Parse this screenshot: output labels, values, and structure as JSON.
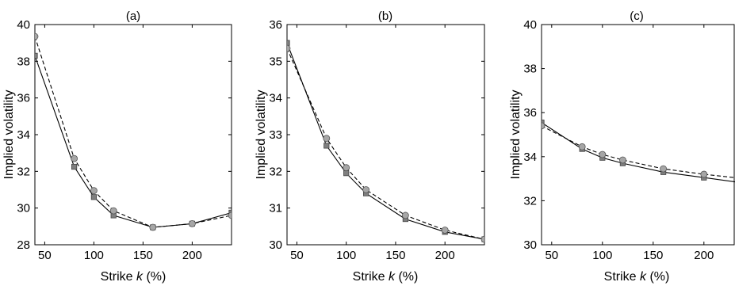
{
  "chart_data": [
    {
      "type": "line",
      "title": "(a)",
      "xlabel": {
        "prefix": "Strike ",
        "italic": "k",
        "suffix": " (%)"
      },
      "ylabel": "Implied volatility",
      "xlim": [
        40,
        240
      ],
      "ylim": [
        28,
        40
      ],
      "xticks": [
        50,
        100,
        150,
        200
      ],
      "yticks": [
        28,
        30,
        32,
        34,
        36,
        38,
        40
      ],
      "grid": false,
      "series": [
        {
          "marker": "square",
          "line": "solid",
          "x": [
            40,
            80,
            100,
            120,
            160,
            200,
            240
          ],
          "y": [
            38.3,
            32.25,
            30.6,
            29.6,
            28.95,
            29.15,
            29.75
          ]
        },
        {
          "marker": "circle",
          "line": "dashed",
          "x": [
            40,
            80,
            100,
            120,
            160,
            200,
            240
          ],
          "y": [
            39.35,
            32.7,
            30.95,
            29.85,
            28.95,
            29.15,
            29.6
          ]
        }
      ]
    },
    {
      "type": "line",
      "title": "(b)",
      "xlabel": {
        "prefix": "Strike ",
        "italic": "k",
        "suffix": " (%)"
      },
      "ylabel": "Implied volatility",
      "xlim": [
        40,
        240
      ],
      "ylim": [
        30,
        36
      ],
      "xticks": [
        50,
        100,
        150,
        200
      ],
      "yticks": [
        30,
        31,
        32,
        33,
        34,
        35,
        36
      ],
      "grid": false,
      "series": [
        {
          "marker": "square",
          "line": "solid",
          "x": [
            40,
            80,
            100,
            120,
            160,
            200,
            240
          ],
          "y": [
            35.5,
            32.7,
            31.95,
            31.4,
            30.7,
            30.35,
            30.15
          ]
        },
        {
          "marker": "circle",
          "line": "dashed",
          "x": [
            40,
            80,
            100,
            120,
            160,
            200,
            240
          ],
          "y": [
            35.35,
            32.9,
            32.1,
            31.5,
            30.8,
            30.4,
            30.15
          ]
        }
      ]
    },
    {
      "type": "line",
      "title": "(c)",
      "xlabel": {
        "prefix": "Strike ",
        "italic": "k",
        "suffix": " (%)"
      },
      "ylabel": "Implied volatility",
      "xlim": [
        40,
        240
      ],
      "ylim": [
        30,
        40
      ],
      "xticks": [
        50,
        100,
        150,
        200
      ],
      "yticks": [
        30,
        32,
        34,
        36,
        38,
        40
      ],
      "grid": false,
      "series": [
        {
          "marker": "square",
          "line": "solid",
          "x": [
            40,
            80,
            100,
            120,
            160,
            200,
            240
          ],
          "y": [
            35.55,
            34.35,
            33.95,
            33.7,
            33.3,
            33.05,
            32.8
          ]
        },
        {
          "marker": "circle",
          "line": "dashed",
          "x": [
            40,
            80,
            100,
            120,
            160,
            200,
            240
          ],
          "y": [
            35.4,
            34.45,
            34.1,
            33.85,
            33.45,
            33.2,
            33.0
          ]
        }
      ]
    }
  ]
}
